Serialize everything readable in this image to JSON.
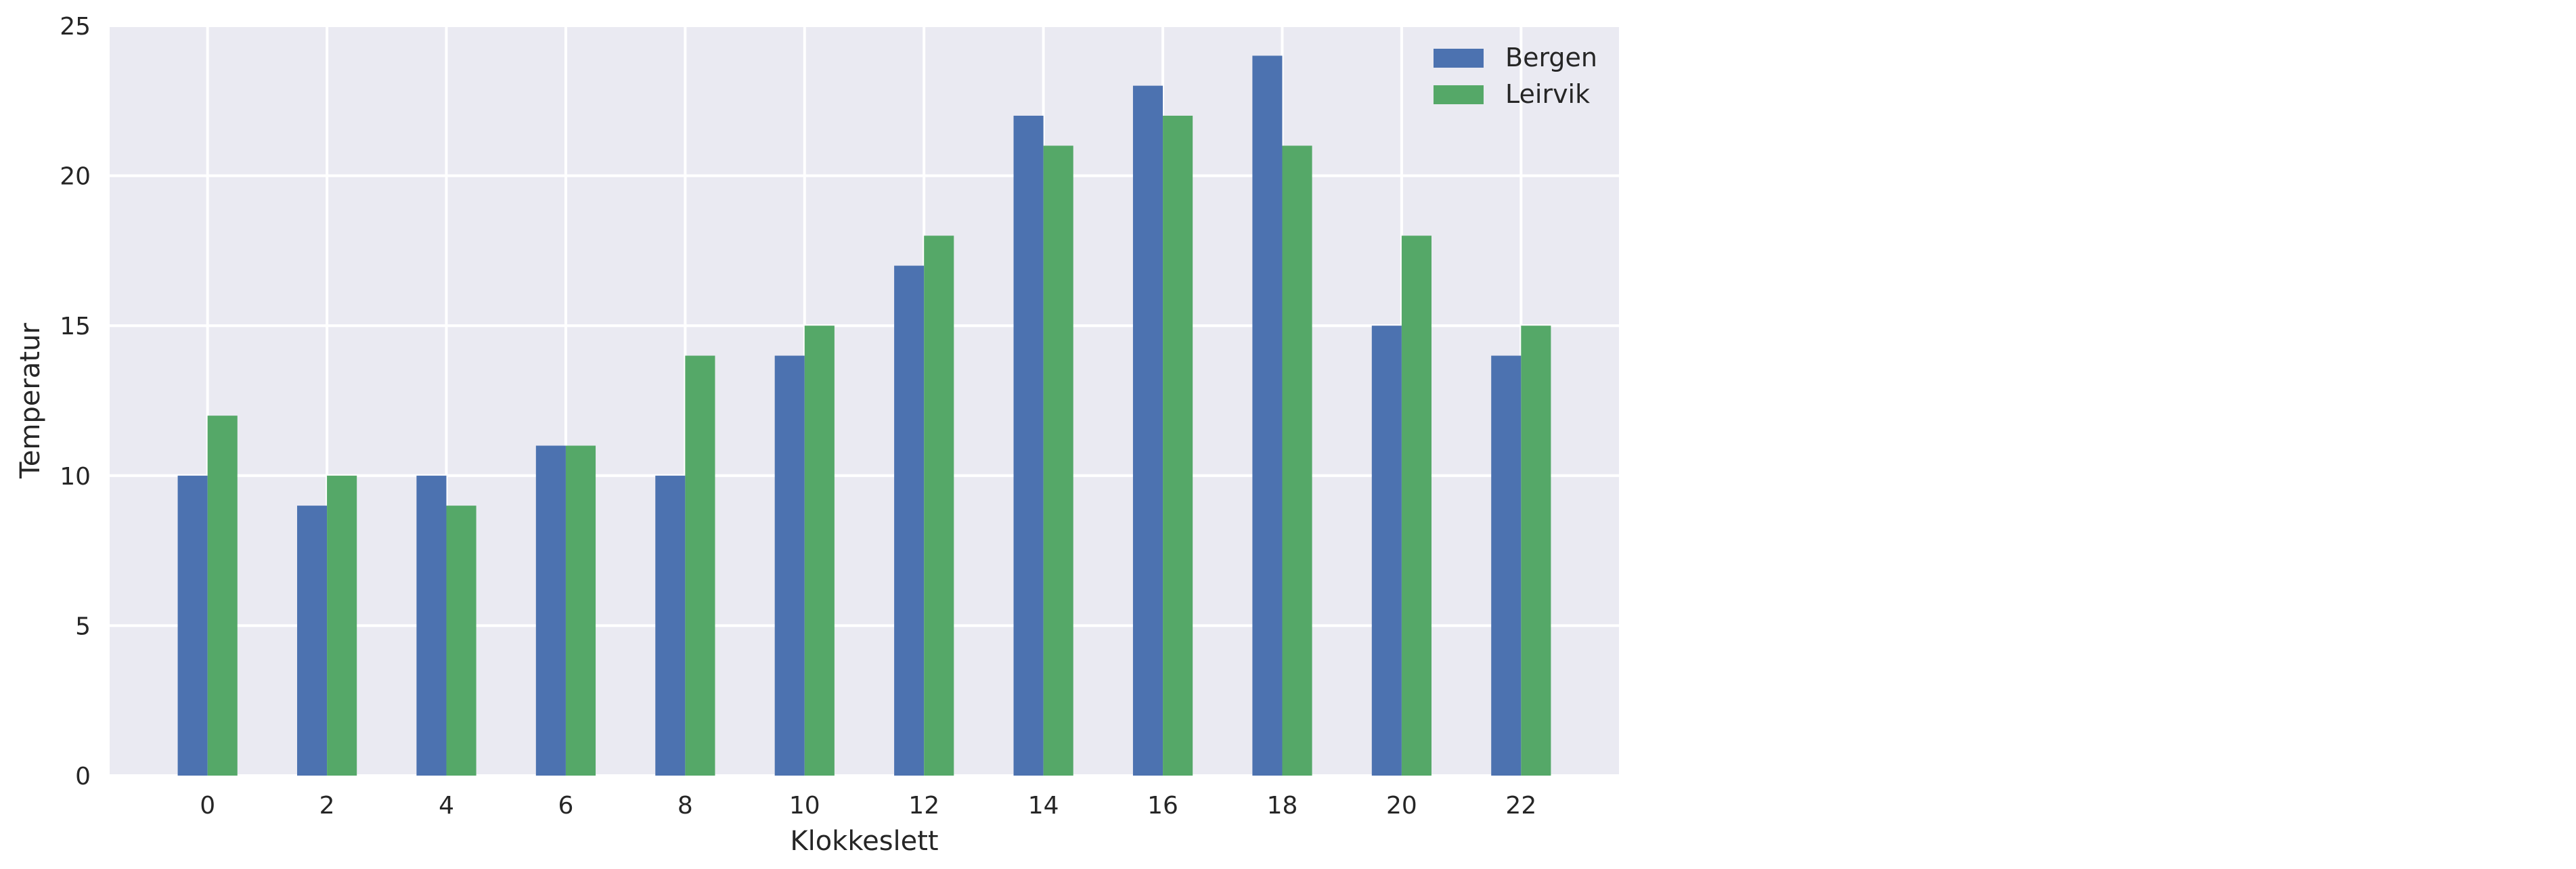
{
  "chart_data": {
    "type": "bar",
    "title": "",
    "xlabel": "Klokkeslett",
    "ylabel": "Temperatur",
    "categories": [
      "0",
      "2",
      "4",
      "6",
      "8",
      "10",
      "12",
      "14",
      "16",
      "18",
      "20",
      "22"
    ],
    "x": [
      0,
      2,
      4,
      6,
      8,
      10,
      12,
      14,
      16,
      18,
      20,
      22
    ],
    "series": [
      {
        "name": "Bergen",
        "color": "#4c72b0",
        "values": [
          10,
          9,
          10,
          11,
          10,
          14,
          17,
          22,
          23,
          24,
          15,
          14
        ]
      },
      {
        "name": "Leirvik",
        "color": "#55a868",
        "values": [
          12,
          10,
          9,
          11,
          14,
          15,
          18,
          21,
          22,
          21,
          18,
          15
        ]
      }
    ],
    "ylim": [
      0,
      25
    ],
    "yticks": [
      0,
      5,
      10,
      15,
      20,
      25
    ],
    "xticks": [
      0,
      2,
      4,
      6,
      8,
      10,
      12,
      14,
      16,
      18,
      20,
      22
    ],
    "grid": true,
    "legend_position": "top-right",
    "background_color": "#eaeaf2"
  }
}
